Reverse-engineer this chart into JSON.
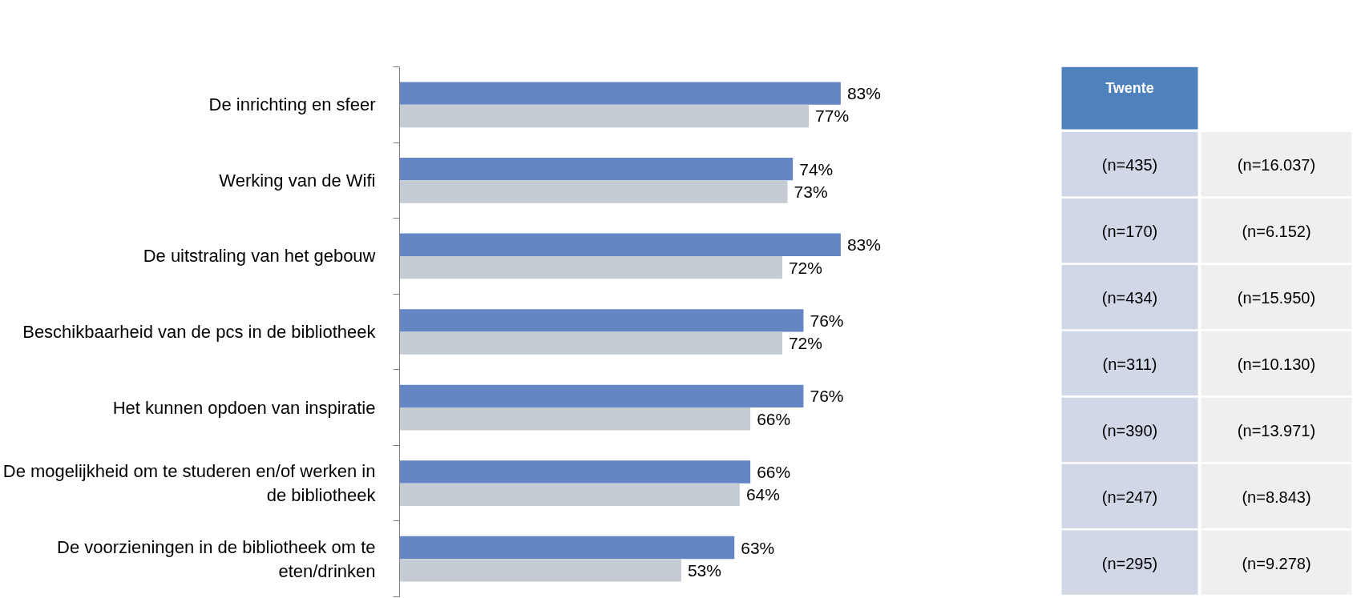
{
  "chart_data": {
    "type": "bar",
    "orientation": "horizontal",
    "categories": [
      "De inrichting en sfeer",
      "Werking van de Wifi",
      "De uitstraling van het gebouw",
      "Beschikbaarheid van de pcs in de bibliotheek",
      "Het kunnen opdoen van inspiratie",
      "De mogelijkheid om te studeren en/of werken in de bibliotheek",
      "De voorzieningen in de bibliotheek om te eten/drinken"
    ],
    "series": [
      {
        "name": "Twente",
        "color": "#6586c4",
        "values": [
          83,
          74,
          83,
          76,
          76,
          66,
          63
        ],
        "value_labels": [
          "83%",
          "74%",
          "83%",
          "76%",
          "76%",
          "66%",
          "63%"
        ]
      },
      {
        "color": "#c5cbd2",
        "values": [
          77,
          73,
          72,
          72,
          66,
          64,
          53
        ],
        "value_labels": [
          "77%",
          "73%",
          "72%",
          "72%",
          "66%",
          "64%",
          "53%"
        ]
      }
    ],
    "legend": "right",
    "annotations": [
      "(n=435)",
      "(n=16.037)",
      "(n=170)",
      "(n=6.152)",
      "(n=434)",
      "(n=15.950)",
      "(n=311)",
      "(n=10.130)",
      "(n=390)",
      "(n=13.971)",
      "(n=247)",
      "(n=8.843)",
      "(n=295)",
      "(n=9.278)"
    ]
  }
}
